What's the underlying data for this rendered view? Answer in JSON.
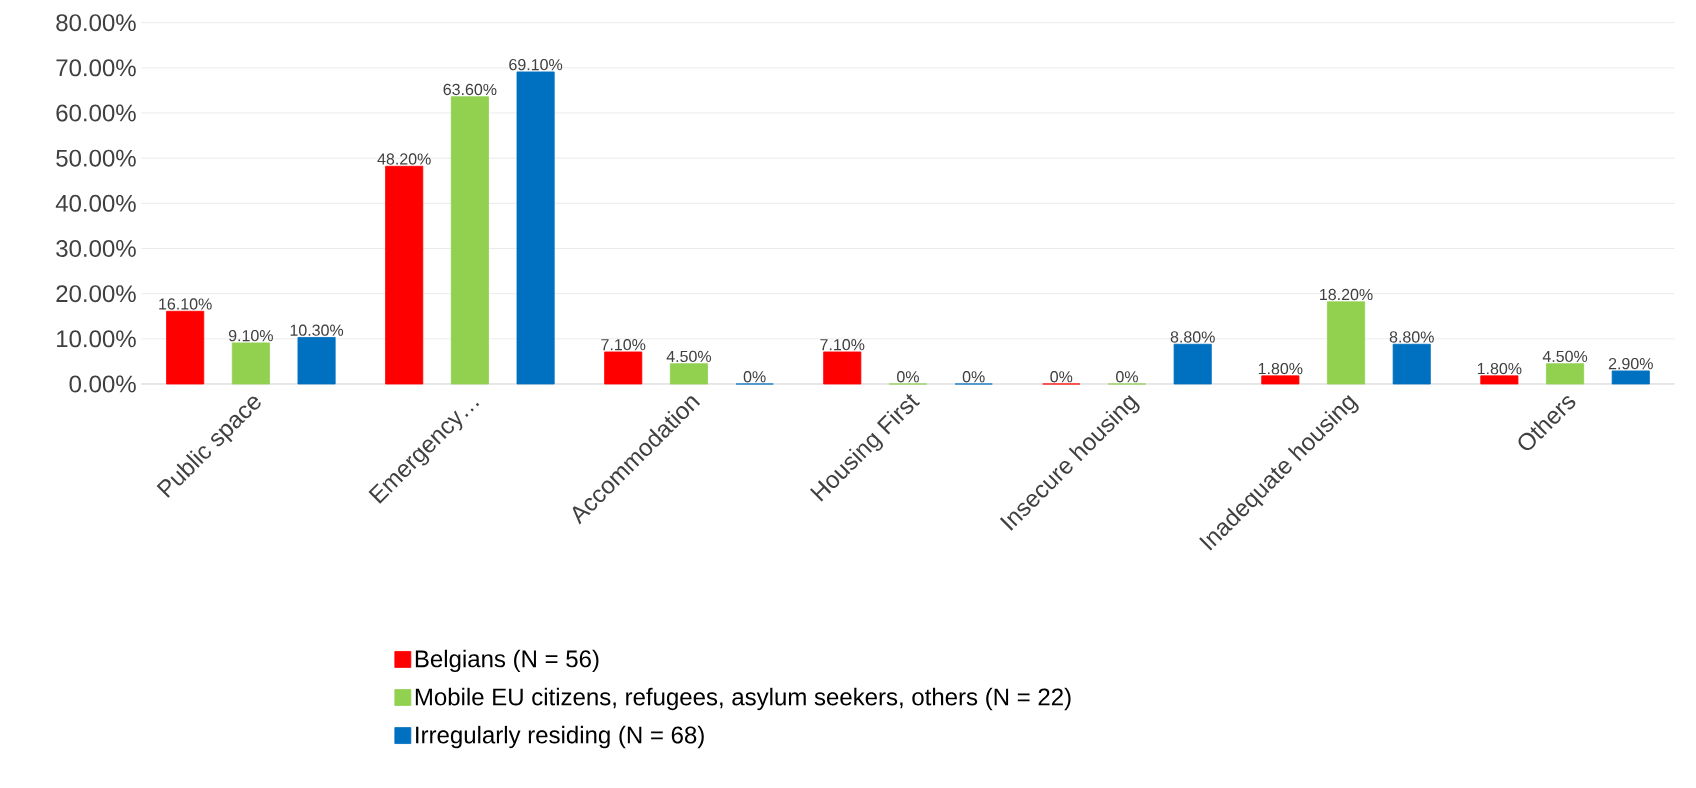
{
  "chart_data": {
    "type": "bar",
    "categories": [
      "Public space",
      "Emergency…",
      "Accommodation",
      "Housing First",
      "Insecure housing",
      "Inadequate housing",
      "Others"
    ],
    "series": [
      {
        "name": "Belgians (N = 56)",
        "color": "#ff0000",
        "values": [
          16.1,
          48.2,
          7.1,
          7.1,
          0,
          1.8,
          1.8
        ],
        "value_labels": [
          "16.10%",
          "48.20%",
          "7.10%",
          "7.10%",
          "0%",
          "1.80%",
          "1.80%"
        ]
      },
      {
        "name": "Mobile EU citizens, refugees, asylum seekers, others (N = 22)",
        "color": "#92d050",
        "values": [
          9.1,
          63.6,
          4.5,
          0,
          0,
          18.2,
          4.5
        ],
        "value_labels": [
          "9.10%",
          "63.60%",
          "4.50%",
          "0%",
          "0%",
          "18.20%",
          "4.50%"
        ]
      },
      {
        "name": "Irregularly residing (N = 68)",
        "color": "#0070c0",
        "values": [
          10.3,
          69.1,
          0,
          0,
          8.8,
          8.8,
          2.9
        ],
        "value_labels": [
          "10.30%",
          "69.10%",
          "0%",
          "0%",
          "8.80%",
          "8.80%",
          "2.90%"
        ]
      }
    ],
    "ylim": [
      0,
      80
    ],
    "yticks": [
      {
        "value": 0,
        "label": "0.00%"
      },
      {
        "value": 10,
        "label": "10.00%"
      },
      {
        "value": 20,
        "label": "20.00%"
      },
      {
        "value": 30,
        "label": "30.00%"
      },
      {
        "value": 40,
        "label": "40.00%"
      },
      {
        "value": 50,
        "label": "50.00%"
      },
      {
        "value": 60,
        "label": "60.00%"
      },
      {
        "value": 70,
        "label": "70.00%"
      },
      {
        "value": 80,
        "label": "80.00%"
      }
    ],
    "grid": "y",
    "legend": "bottom"
  }
}
